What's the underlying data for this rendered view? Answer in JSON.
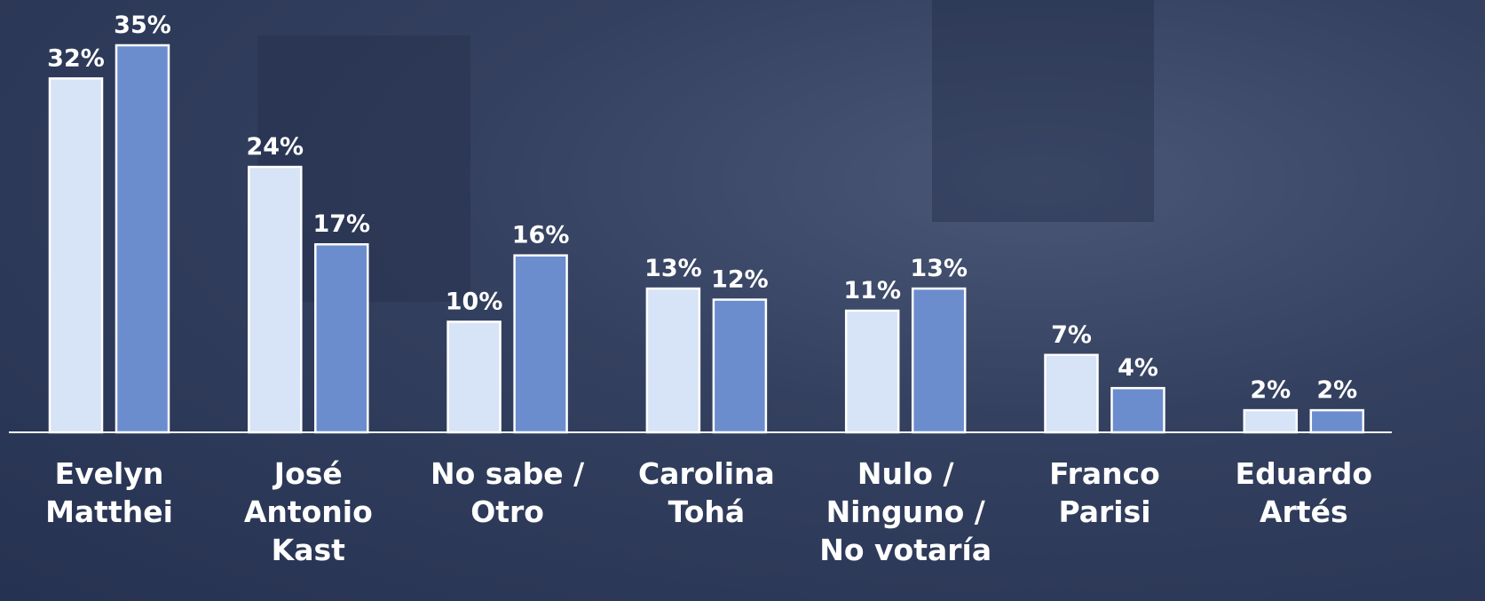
{
  "chart_data": {
    "type": "bar",
    "categories": [
      "Evelyn Matthei",
      "José Antonio Kast",
      "No sabe / Otro",
      "Carolina Tohá",
      "Nulo / Ninguno / No votaría",
      "Franco Parisi",
      "Eduardo Artés"
    ],
    "series": [
      {
        "color": "#d7e3f6",
        "values": [
          32,
          24,
          10,
          13,
          11,
          7,
          2
        ],
        "value_labels": [
          "32%",
          "24%",
          "10%",
          "13%",
          "11%",
          "7%",
          "2%"
        ]
      },
      {
        "color": "#6b8dce",
        "values": [
          35,
          17,
          16,
          12,
          13,
          4,
          2
        ],
        "value_labels": [
          "35%",
          "17%",
          "16%",
          "12%",
          "13%",
          "4%",
          "2%"
        ]
      }
    ],
    "ylim": [
      0,
      35
    ]
  }
}
